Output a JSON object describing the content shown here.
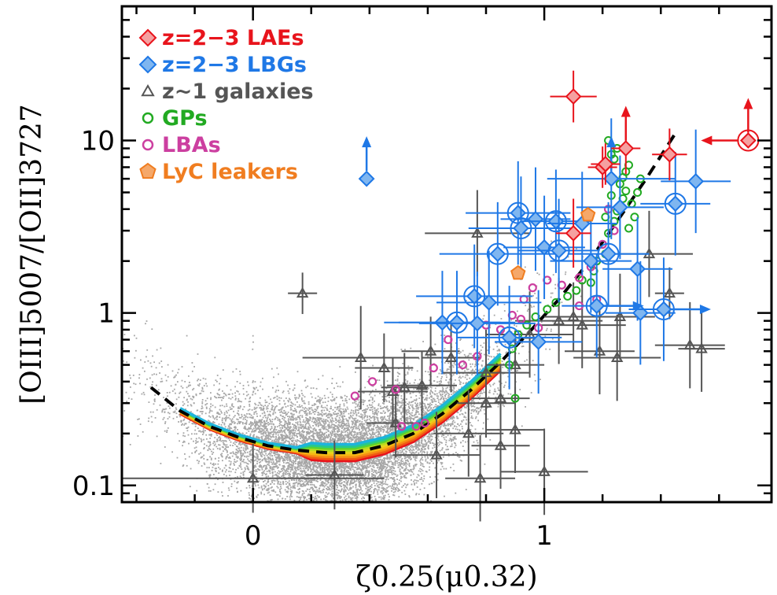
{
  "chart_data": {
    "type": "scatter",
    "xlabel": "ζ0.25(μ0.32)",
    "ylabel": "[OIII]5007/[OII]3727",
    "xscale": "linear",
    "yscale": "log",
    "xlim": [
      -0.45,
      1.78
    ],
    "ylim": [
      0.08,
      60
    ],
    "x_ticks": [
      {
        "value": 0,
        "label": "0"
      },
      {
        "value": 1,
        "label": "1"
      }
    ],
    "y_ticks": [
      {
        "value": 0.1,
        "label": "0.1"
      },
      {
        "value": 1,
        "label": "1"
      },
      {
        "value": 10,
        "label": "10"
      }
    ],
    "grid": false,
    "legend_position": "top-left",
    "colors": {
      "lae": "#e8141c",
      "lbg": "#1f78e6",
      "z1": "#555555",
      "gp": "#22aa22",
      "lba": "#cc3fa0",
      "lyc": "#f07d20",
      "sdss": "#a6a6a6",
      "fit": "#000000"
    },
    "legend": [
      {
        "key": "lae",
        "label": "z=2−3 LAEs",
        "marker": "diamond"
      },
      {
        "key": "lbg",
        "label": "z=2−3 LBGs",
        "marker": "diamond"
      },
      {
        "key": "z1",
        "label": "z~1 galaxies",
        "marker": "triangle"
      },
      {
        "key": "gp",
        "label": "GPs",
        "marker": "circle"
      },
      {
        "key": "lba",
        "label": "LBAs",
        "marker": "circle"
      },
      {
        "key": "lyc",
        "label": "LyC leakers",
        "marker": "pentagon"
      }
    ],
    "series": [
      {
        "key": "lae",
        "name": "z=2−3 LAEs",
        "points": [
          {
            "x": 1.1,
            "y": 18,
            "xerr": 0.08,
            "yerr": 0.15
          },
          {
            "x": 1.2,
            "y": 7.0,
            "xerr": 0.05,
            "yerr": 0.12
          },
          {
            "x": 1.21,
            "y": 7.3,
            "xerr": 0.05,
            "yerr": 0.12
          },
          {
            "x": 1.28,
            "y": 9.0,
            "xerr": 0.05,
            "yerr": 0.15,
            "lower_limit": true
          },
          {
            "x": 1.43,
            "y": 8.3,
            "xerr": 0.06,
            "yerr": 0.15
          },
          {
            "x": 1.1,
            "y": 2.9,
            "xerr": 0.06,
            "yerr": 0.2
          },
          {
            "x": 1.7,
            "y": 10.0,
            "left_arrow": true,
            "lower_limit": true
          }
        ]
      },
      {
        "key": "lbg",
        "name": "z=2−3 LBGs",
        "points": [
          {
            "x": 0.39,
            "y": 6.0,
            "lower_limit": true
          },
          {
            "x": 1.23,
            "y": 6.0,
            "xerr": 0.22,
            "yerr": 0.35,
            "lower_limit": true
          },
          {
            "x": 1.45,
            "y": 4.3,
            "xerr": 0.12,
            "yerr": 0.3
          },
          {
            "x": 1.52,
            "y": 5.8,
            "xerr": 0.12,
            "yerr": 0.3
          },
          {
            "x": 0.91,
            "y": 3.8,
            "xerr": 0.18,
            "yerr": 0.3
          },
          {
            "x": 0.97,
            "y": 3.5,
            "xerr": 0.12,
            "yerr": 0.3
          },
          {
            "x": 1.04,
            "y": 3.4,
            "xerr": 0.12,
            "yerr": 0.3
          },
          {
            "x": 1.13,
            "y": 3.3,
            "xerr": 0.12,
            "yerr": 0.3
          },
          {
            "x": 0.92,
            "y": 3.1,
            "xerr": 0.18,
            "yerr": 0.3
          },
          {
            "x": 1.26,
            "y": 4.1,
            "xerr": 0.15,
            "yerr": 0.3
          },
          {
            "x": 0.84,
            "y": 2.2,
            "xerr": 0.2,
            "yerr": 0.3
          },
          {
            "x": 1.0,
            "y": 2.4,
            "xerr": 0.14,
            "yerr": 0.3
          },
          {
            "x": 1.05,
            "y": 2.3,
            "xerr": 0.14,
            "yerr": 0.3
          },
          {
            "x": 1.16,
            "y": 2.0,
            "xerr": 0.14,
            "yerr": 0.3
          },
          {
            "x": 1.22,
            "y": 2.2,
            "xerr": 0.14,
            "yerr": 0.3
          },
          {
            "x": 1.32,
            "y": 1.8,
            "xerr": 0.12,
            "yerr": 0.3
          },
          {
            "x": 0.76,
            "y": 1.25,
            "xerr": 0.2,
            "yerr": 0.3
          },
          {
            "x": 0.81,
            "y": 1.15,
            "xerr": 0.18,
            "yerr": 0.3
          },
          {
            "x": 1.18,
            "y": 1.1,
            "xerr": 0.12,
            "yerr": 0.3,
            "right_arrow": true
          },
          {
            "x": 1.33,
            "y": 1.0,
            "xerr": 0.12,
            "yerr": 0.3
          },
          {
            "x": 1.41,
            "y": 1.05,
            "xerr": 0.12,
            "yerr": 0.3,
            "right_arrow": true
          },
          {
            "x": 0.65,
            "y": 0.88,
            "xerr": 0.2,
            "yerr": 0.3
          },
          {
            "x": 0.7,
            "y": 0.88,
            "xerr": 0.2,
            "yerr": 0.3
          },
          {
            "x": 0.77,
            "y": 0.87,
            "xerr": 0.2,
            "yerr": 0.3
          },
          {
            "x": 0.88,
            "y": 0.72,
            "xerr": 0.18,
            "yerr": 0.3
          },
          {
            "x": 0.98,
            "y": 0.68,
            "xerr": 0.15,
            "yerr": 0.3
          }
        ]
      },
      {
        "key": "z1",
        "name": "z~1 galaxies",
        "points": [
          {
            "x": 0.17,
            "y": 1.3,
            "xerr": 0.05,
            "yerr": 0.12
          },
          {
            "x": 0.77,
            "y": 2.9,
            "xerr": 0.18,
            "yerr": 0.25
          },
          {
            "x": 0.0,
            "y": 0.11,
            "xerr": 0.45,
            "yerr": 0.2
          },
          {
            "x": 0.28,
            "y": 0.115,
            "xerr": 0.1,
            "yerr": 0.2
          },
          {
            "x": 0.37,
            "y": 0.55,
            "xerr": 0.2,
            "yerr": 0.3
          },
          {
            "x": 0.45,
            "y": 0.48,
            "xerr": 0.1,
            "yerr": 0.2
          },
          {
            "x": 0.48,
            "y": 0.35,
            "xerr": 0.12,
            "yerr": 0.2
          },
          {
            "x": 0.52,
            "y": 0.37,
            "xerr": 0.08,
            "yerr": 0.2
          },
          {
            "x": 0.58,
            "y": 0.38,
            "xerr": 0.12,
            "yerr": 0.2
          },
          {
            "x": 0.49,
            "y": 0.23,
            "xerr": 0.1,
            "yerr": 0.2
          },
          {
            "x": 0.61,
            "y": 0.6,
            "xerr": 0.1,
            "yerr": 0.2
          },
          {
            "x": 0.68,
            "y": 0.55,
            "xerr": 0.1,
            "yerr": 0.2
          },
          {
            "x": 0.63,
            "y": 0.15,
            "xerr": 0.15,
            "yerr": 0.25
          },
          {
            "x": 0.74,
            "y": 0.2,
            "xerr": 0.12,
            "yerr": 0.25
          },
          {
            "x": 0.8,
            "y": 0.3,
            "xerr": 0.1,
            "yerr": 0.2
          },
          {
            "x": 0.85,
            "y": 0.32,
            "xerr": 0.1,
            "yerr": 0.2
          },
          {
            "x": 0.78,
            "y": 0.11,
            "xerr": 0.12,
            "yerr": 0.25
          },
          {
            "x": 0.85,
            "y": 0.17,
            "xerr": 0.1,
            "yerr": 0.25
          },
          {
            "x": 0.9,
            "y": 0.21,
            "xerr": 0.1,
            "yerr": 0.25
          },
          {
            "x": 0.8,
            "y": 0.45,
            "xerr": 0.15,
            "yerr": 0.25
          },
          {
            "x": 0.9,
            "y": 0.5,
            "xerr": 0.1,
            "yerr": 0.2
          },
          {
            "x": 0.95,
            "y": 0.75,
            "xerr": 0.15,
            "yerr": 0.25
          },
          {
            "x": 1.0,
            "y": 0.12,
            "xerr": 0.15,
            "yerr": 0.25
          },
          {
            "x": 1.05,
            "y": 0.9,
            "xerr": 0.15,
            "yerr": 0.25
          },
          {
            "x": 1.1,
            "y": 0.95,
            "xerr": 0.1,
            "yerr": 0.2
          },
          {
            "x": 1.13,
            "y": 0.85,
            "xerr": 0.15,
            "yerr": 0.25
          },
          {
            "x": 1.19,
            "y": 0.6,
            "xerr": 0.12,
            "yerr": 0.25
          },
          {
            "x": 1.25,
            "y": 0.55,
            "xerr": 0.15,
            "yerr": 0.25
          },
          {
            "x": 1.26,
            "y": 0.95,
            "xerr": 0.12,
            "yerr": 0.25
          },
          {
            "x": 1.36,
            "y": 2.2,
            "xerr": 0.15,
            "yerr": 0.25
          },
          {
            "x": 1.43,
            "y": 1.3,
            "xerr": 0.05,
            "yerr": 0.15
          },
          {
            "x": 1.5,
            "y": 0.65,
            "xerr": 0.12,
            "yerr": 0.25
          },
          {
            "x": 1.54,
            "y": 0.62,
            "xerr": 0.08,
            "yerr": 0.25
          }
        ]
      },
      {
        "key": "gp",
        "name": "GPs",
        "points": [
          {
            "x": 1.2,
            "y": 2.5
          },
          {
            "x": 1.22,
            "y": 2.9
          },
          {
            "x": 1.24,
            "y": 3.4
          },
          {
            "x": 1.25,
            "y": 3.9
          },
          {
            "x": 1.27,
            "y": 4.6
          },
          {
            "x": 1.28,
            "y": 5.1
          },
          {
            "x": 1.26,
            "y": 5.6
          },
          {
            "x": 1.27,
            "y": 6.1
          },
          {
            "x": 1.28,
            "y": 6.6
          },
          {
            "x": 1.29,
            "y": 7.2
          },
          {
            "x": 1.24,
            "y": 7.8
          },
          {
            "x": 1.23,
            "y": 8.3
          },
          {
            "x": 1.25,
            "y": 9.0
          },
          {
            "x": 1.22,
            "y": 10.0
          },
          {
            "x": 1.31,
            "y": 3.6
          },
          {
            "x": 1.29,
            "y": 3.1
          },
          {
            "x": 1.21,
            "y": 2.2
          },
          {
            "x": 1.18,
            "y": 2.0
          },
          {
            "x": 1.17,
            "y": 1.75
          },
          {
            "x": 1.16,
            "y": 1.5
          },
          {
            "x": 1.13,
            "y": 1.55
          },
          {
            "x": 1.11,
            "y": 1.35
          },
          {
            "x": 1.08,
            "y": 1.25
          },
          {
            "x": 1.04,
            "y": 1.15
          },
          {
            "x": 1.01,
            "y": 1.05
          },
          {
            "x": 0.97,
            "y": 0.95
          },
          {
            "x": 0.94,
            "y": 0.85
          },
          {
            "x": 0.91,
            "y": 0.75
          },
          {
            "x": 0.89,
            "y": 0.62
          },
          {
            "x": 0.88,
            "y": 0.5
          },
          {
            "x": 0.9,
            "y": 0.32
          },
          {
            "x": 1.32,
            "y": 5.0
          },
          {
            "x": 1.33,
            "y": 6.0
          },
          {
            "x": 1.3,
            "y": 4.3
          },
          {
            "x": 1.23,
            "y": 4.8
          },
          {
            "x": 1.21,
            "y": 3.6
          }
        ]
      },
      {
        "key": "lba",
        "name": "LBAs",
        "points": [
          {
            "x": 0.35,
            "y": 0.33
          },
          {
            "x": 0.41,
            "y": 0.4
          },
          {
            "x": 0.49,
            "y": 0.36
          },
          {
            "x": 0.51,
            "y": 0.22
          },
          {
            "x": 0.56,
            "y": 0.22
          },
          {
            "x": 0.59,
            "y": 0.23
          },
          {
            "x": 0.62,
            "y": 0.48
          },
          {
            "x": 0.67,
            "y": 0.7
          },
          {
            "x": 0.72,
            "y": 0.5
          },
          {
            "x": 0.77,
            "y": 0.56
          },
          {
            "x": 0.8,
            "y": 0.85
          },
          {
            "x": 0.85,
            "y": 0.8
          },
          {
            "x": 0.89,
            "y": 0.97
          },
          {
            "x": 0.92,
            "y": 0.92
          },
          {
            "x": 0.98,
            "y": 0.82
          },
          {
            "x": 0.93,
            "y": 1.2
          },
          {
            "x": 0.96,
            "y": 1.4
          },
          {
            "x": 1.01,
            "y": 1.55
          },
          {
            "x": 1.06,
            "y": 1.45
          },
          {
            "x": 1.12,
            "y": 1.6
          },
          {
            "x": 1.16,
            "y": 1.85
          },
          {
            "x": 1.2,
            "y": 2.5
          },
          {
            "x": 1.24,
            "y": 3.0
          },
          {
            "x": 1.22,
            "y": 4.0
          },
          {
            "x": 1.18,
            "y": 1.2
          },
          {
            "x": 1.12,
            "y": 1.1
          }
        ]
      },
      {
        "key": "lyc",
        "name": "LyC leakers",
        "points": [
          {
            "x": 0.91,
            "y": 1.7
          },
          {
            "x": 1.15,
            "y": 3.7
          }
        ]
      }
    ],
    "fit_curve": {
      "style": "dashed",
      "x": [
        -0.35,
        -0.25,
        -0.15,
        -0.05,
        0.05,
        0.15,
        0.25,
        0.35,
        0.45,
        0.55,
        0.65,
        0.75,
        0.85,
        0.95,
        1.05,
        1.15,
        1.25,
        1.35,
        1.45
      ],
      "y": [
        0.37,
        0.27,
        0.22,
        0.19,
        0.17,
        0.16,
        0.155,
        0.155,
        0.17,
        0.2,
        0.26,
        0.36,
        0.52,
        0.78,
        1.2,
        1.95,
        3.4,
        6.0,
        11.0
      ]
    },
    "sdss_cloud": {
      "x_range": [
        -0.45,
        1.15
      ],
      "center_x": 0.3,
      "y_center": 0.22
    }
  }
}
